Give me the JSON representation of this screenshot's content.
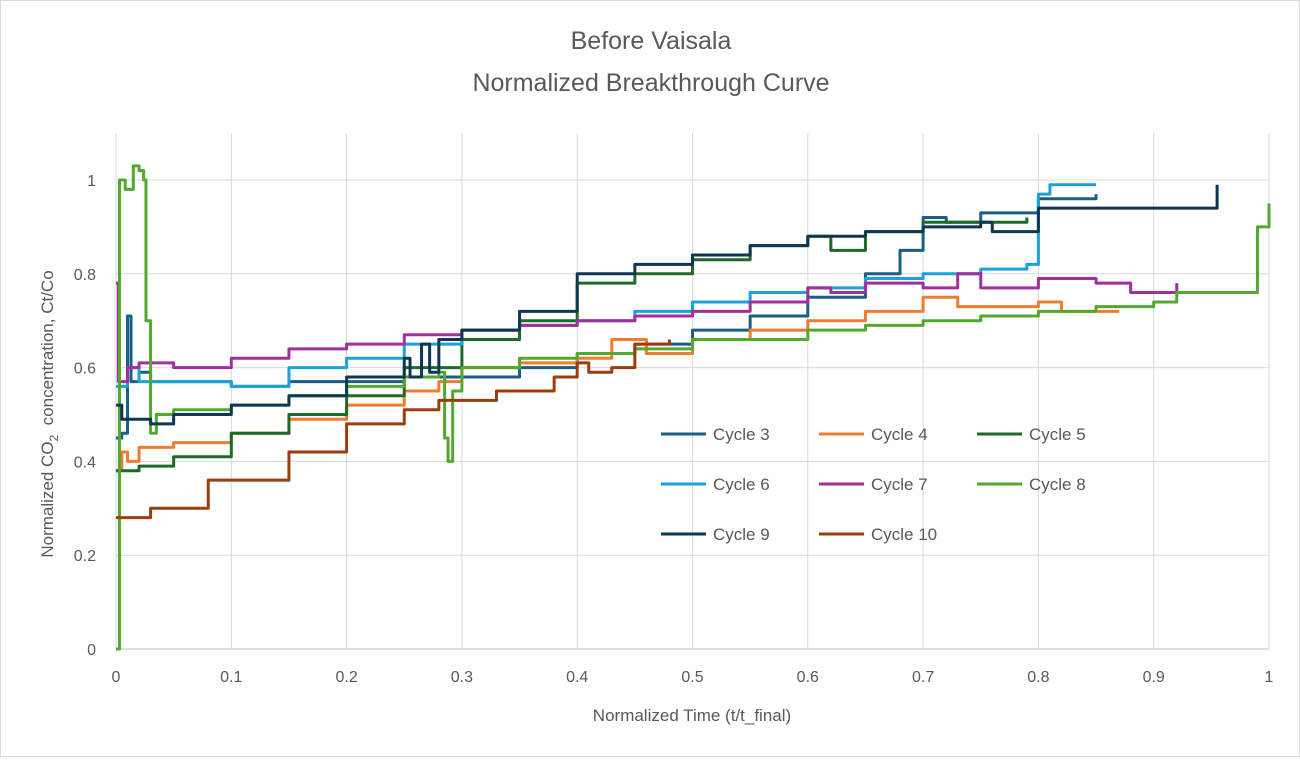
{
  "chart_data": {
    "type": "line",
    "title": [
      "Before Vaisala",
      "Normalized Breakthrough Curve"
    ],
    "xlabel": "Normalized Time (t/t_final)",
    "ylabel": "Normalized CO₂ concentration, Ct/Co",
    "ylabel_parts": {
      "pre": "Normalized CO",
      "sub": "2",
      "post": "  concentration, Ct/Co"
    },
    "xlim": [
      0,
      1
    ],
    "ylim": [
      0,
      1.1
    ],
    "xticks": [
      "0",
      "0.1",
      "0.2",
      "0.3",
      "0.4",
      "0.5",
      "0.6",
      "0.7",
      "0.8",
      "0.9",
      "1"
    ],
    "yticks": [
      "0",
      "0.2",
      "0.4",
      "0.6",
      "0.8",
      "1"
    ],
    "grid": true,
    "legend_position": "inside-right",
    "series": [
      {
        "name": "Cycle 3",
        "color": "#1B5E86",
        "points": [
          [
            0,
            0.45
          ],
          [
            0.005,
            0.46
          ],
          [
            0.01,
            0.71
          ],
          [
            0.013,
            0.57
          ],
          [
            0.02,
            0.59
          ],
          [
            0.03,
            0.57
          ],
          [
            0.06,
            0.57
          ],
          [
            0.1,
            0.56
          ],
          [
            0.15,
            0.57
          ],
          [
            0.2,
            0.57
          ],
          [
            0.25,
            0.58
          ],
          [
            0.3,
            0.58
          ],
          [
            0.35,
            0.6
          ],
          [
            0.4,
            0.63
          ],
          [
            0.45,
            0.65
          ],
          [
            0.5,
            0.68
          ],
          [
            0.55,
            0.71
          ],
          [
            0.6,
            0.75
          ],
          [
            0.65,
            0.8
          ],
          [
            0.68,
            0.85
          ],
          [
            0.7,
            0.92
          ],
          [
            0.72,
            0.91
          ],
          [
            0.75,
            0.93
          ],
          [
            0.8,
            0.96
          ],
          [
            0.85,
            0.97
          ]
        ]
      },
      {
        "name": "Cycle 4",
        "color": "#ED7D31",
        "points": [
          [
            0,
            0.38
          ],
          [
            0.005,
            0.42
          ],
          [
            0.01,
            0.4
          ],
          [
            0.02,
            0.43
          ],
          [
            0.05,
            0.44
          ],
          [
            0.1,
            0.46
          ],
          [
            0.15,
            0.49
          ],
          [
            0.2,
            0.52
          ],
          [
            0.25,
            0.55
          ],
          [
            0.28,
            0.57
          ],
          [
            0.3,
            0.6
          ],
          [
            0.35,
            0.61
          ],
          [
            0.4,
            0.62
          ],
          [
            0.43,
            0.66
          ],
          [
            0.46,
            0.63
          ],
          [
            0.5,
            0.66
          ],
          [
            0.55,
            0.68
          ],
          [
            0.6,
            0.7
          ],
          [
            0.65,
            0.72
          ],
          [
            0.7,
            0.75
          ],
          [
            0.73,
            0.73
          ],
          [
            0.8,
            0.74
          ],
          [
            0.82,
            0.72
          ],
          [
            0.87,
            0.72
          ]
        ]
      },
      {
        "name": "Cycle 5",
        "color": "#1E6B28",
        "points": [
          [
            0,
            0.38
          ],
          [
            0.02,
            0.39
          ],
          [
            0.05,
            0.41
          ],
          [
            0.1,
            0.46
          ],
          [
            0.15,
            0.5
          ],
          [
            0.2,
            0.54
          ],
          [
            0.25,
            0.6
          ],
          [
            0.3,
            0.66
          ],
          [
            0.35,
            0.7
          ],
          [
            0.4,
            0.78
          ],
          [
            0.45,
            0.8
          ],
          [
            0.5,
            0.83
          ],
          [
            0.55,
            0.86
          ],
          [
            0.6,
            0.88
          ],
          [
            0.62,
            0.85
          ],
          [
            0.65,
            0.89
          ],
          [
            0.7,
            0.91
          ],
          [
            0.75,
            0.91
          ],
          [
            0.79,
            0.92
          ]
        ]
      },
      {
        "name": "Cycle 6",
        "color": "#1BA1DB",
        "points": [
          [
            0,
            0.56
          ],
          [
            0.01,
            0.6
          ],
          [
            0.02,
            0.57
          ],
          [
            0.05,
            0.57
          ],
          [
            0.1,
            0.56
          ],
          [
            0.15,
            0.6
          ],
          [
            0.2,
            0.62
          ],
          [
            0.25,
            0.65
          ],
          [
            0.3,
            0.68
          ],
          [
            0.35,
            0.69
          ],
          [
            0.4,
            0.7
          ],
          [
            0.45,
            0.72
          ],
          [
            0.5,
            0.74
          ],
          [
            0.55,
            0.76
          ],
          [
            0.6,
            0.77
          ],
          [
            0.65,
            0.79
          ],
          [
            0.7,
            0.8
          ],
          [
            0.75,
            0.81
          ],
          [
            0.79,
            0.82
          ],
          [
            0.8,
            0.97
          ],
          [
            0.81,
            0.99
          ],
          [
            0.85,
            0.99
          ]
        ]
      },
      {
        "name": "Cycle 7",
        "color": "#A0309A",
        "points": [
          [
            0,
            0.78
          ],
          [
            0.002,
            0.57
          ],
          [
            0.01,
            0.6
          ],
          [
            0.02,
            0.61
          ],
          [
            0.05,
            0.6
          ],
          [
            0.1,
            0.62
          ],
          [
            0.15,
            0.64
          ],
          [
            0.2,
            0.65
          ],
          [
            0.25,
            0.67
          ],
          [
            0.3,
            0.68
          ],
          [
            0.35,
            0.69
          ],
          [
            0.4,
            0.7
          ],
          [
            0.45,
            0.71
          ],
          [
            0.5,
            0.72
          ],
          [
            0.55,
            0.74
          ],
          [
            0.6,
            0.77
          ],
          [
            0.62,
            0.76
          ],
          [
            0.65,
            0.78
          ],
          [
            0.7,
            0.77
          ],
          [
            0.73,
            0.8
          ],
          [
            0.75,
            0.77
          ],
          [
            0.8,
            0.79
          ],
          [
            0.85,
            0.78
          ],
          [
            0.88,
            0.76
          ],
          [
            0.9,
            0.76
          ],
          [
            0.92,
            0.78
          ]
        ]
      },
      {
        "name": "Cycle 8",
        "color": "#55A82F",
        "points": [
          [
            0,
            0
          ],
          [
            0.003,
            1.0
          ],
          [
            0.008,
            0.98
          ],
          [
            0.015,
            1.03
          ],
          [
            0.02,
            1.02
          ],
          [
            0.024,
            1.0
          ],
          [
            0.026,
            0.7
          ],
          [
            0.03,
            0.46
          ],
          [
            0.035,
            0.5
          ],
          [
            0.05,
            0.51
          ],
          [
            0.1,
            0.52
          ],
          [
            0.15,
            0.54
          ],
          [
            0.2,
            0.56
          ],
          [
            0.25,
            0.58
          ],
          [
            0.28,
            0.59
          ],
          [
            0.285,
            0.45
          ],
          [
            0.288,
            0.4
          ],
          [
            0.292,
            0.55
          ],
          [
            0.3,
            0.6
          ],
          [
            0.35,
            0.62
          ],
          [
            0.4,
            0.63
          ],
          [
            0.45,
            0.64
          ],
          [
            0.5,
            0.66
          ],
          [
            0.55,
            0.66
          ],
          [
            0.6,
            0.68
          ],
          [
            0.65,
            0.69
          ],
          [
            0.7,
            0.7
          ],
          [
            0.75,
            0.71
          ],
          [
            0.8,
            0.72
          ],
          [
            0.85,
            0.73
          ],
          [
            0.9,
            0.74
          ],
          [
            0.92,
            0.76
          ],
          [
            0.95,
            0.76
          ],
          [
            0.985,
            0.76
          ],
          [
            0.99,
            0.9
          ],
          [
            1.0,
            0.95
          ]
        ]
      },
      {
        "name": "Cycle 9",
        "color": "#0E3752",
        "points": [
          [
            0,
            0.52
          ],
          [
            0.005,
            0.49
          ],
          [
            0.02,
            0.49
          ],
          [
            0.03,
            0.48
          ],
          [
            0.05,
            0.5
          ],
          [
            0.1,
            0.52
          ],
          [
            0.15,
            0.54
          ],
          [
            0.2,
            0.58
          ],
          [
            0.25,
            0.62
          ],
          [
            0.255,
            0.58
          ],
          [
            0.265,
            0.65
          ],
          [
            0.272,
            0.59
          ],
          [
            0.28,
            0.66
          ],
          [
            0.3,
            0.68
          ],
          [
            0.35,
            0.72
          ],
          [
            0.4,
            0.8
          ],
          [
            0.45,
            0.82
          ],
          [
            0.5,
            0.84
          ],
          [
            0.55,
            0.86
          ],
          [
            0.6,
            0.88
          ],
          [
            0.65,
            0.89
          ],
          [
            0.7,
            0.9
          ],
          [
            0.75,
            0.91
          ],
          [
            0.76,
            0.89
          ],
          [
            0.8,
            0.94
          ],
          [
            0.85,
            0.94
          ],
          [
            0.95,
            0.94
          ],
          [
            0.955,
            0.99
          ]
        ]
      },
      {
        "name": "Cycle 10",
        "color": "#9C3D10",
        "points": [
          [
            0,
            0.28
          ],
          [
            0.03,
            0.3
          ],
          [
            0.08,
            0.36
          ],
          [
            0.15,
            0.42
          ],
          [
            0.2,
            0.48
          ],
          [
            0.25,
            0.51
          ],
          [
            0.28,
            0.53
          ],
          [
            0.33,
            0.55
          ],
          [
            0.38,
            0.58
          ],
          [
            0.4,
            0.61
          ],
          [
            0.41,
            0.59
          ],
          [
            0.43,
            0.6
          ],
          [
            0.45,
            0.65
          ],
          [
            0.48,
            0.66
          ]
        ]
      }
    ]
  }
}
